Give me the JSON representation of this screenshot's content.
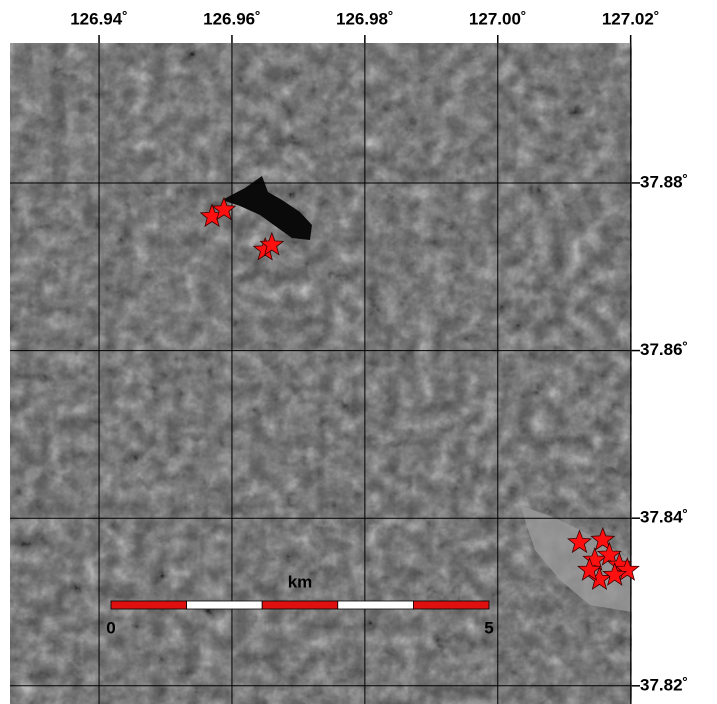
{
  "chart_data": {
    "type": "scatter",
    "x": [
      126.957,
      126.9588,
      126.965,
      126.966,
      127.0123,
      127.0158,
      127.0146,
      127.0168,
      127.0183,
      127.0195,
      127.0153,
      127.0176,
      127.0138
    ],
    "y": [
      37.876,
      37.8768,
      37.872,
      37.8726,
      37.8371,
      37.8374,
      37.835,
      37.8356,
      37.8344,
      37.8338,
      37.8327,
      37.8332,
      37.8338
    ],
    "color": "#ff1010",
    "xlim": [
      126.9266,
      127.0202
    ],
    "ylim": [
      37.8195,
      37.8967
    ],
    "xticks": [
      {
        "value": 126.94,
        "label": "126.94˚"
      },
      {
        "value": 126.96,
        "label": "126.96˚"
      },
      {
        "value": 126.98,
        "label": "126.98˚"
      },
      {
        "value": 127.0,
        "label": "127.00˚"
      },
      {
        "value": 127.02,
        "label": "127.02˚"
      }
    ],
    "yticks": [
      {
        "value": 37.82,
        "label": "37.82˚"
      },
      {
        "value": 37.84,
        "label": "37.84˚"
      },
      {
        "value": 37.86,
        "label": "37.86˚"
      },
      {
        "value": 37.88,
        "label": "37.88˚"
      }
    ],
    "grid": true,
    "scale_bar": {
      "label": "km",
      "ticks": [
        0,
        5
      ]
    }
  }
}
